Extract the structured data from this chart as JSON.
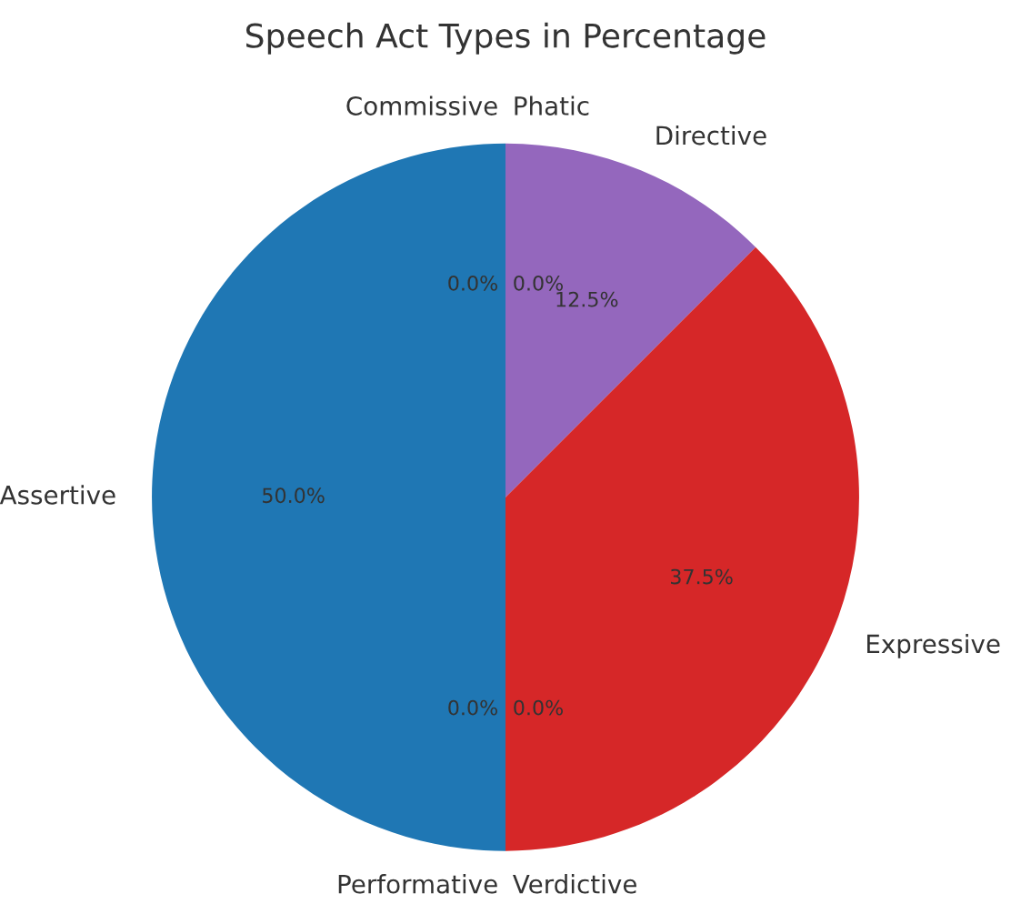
{
  "chart_data": {
    "type": "pie",
    "title": "Speech Act Types in Percentage",
    "categories": [
      "Assertive",
      "Performative",
      "Verdictive",
      "Expressive",
      "Directive",
      "Commissive",
      "Phatic"
    ],
    "values": [
      50.0,
      0.0,
      0.0,
      37.5,
      12.5,
      0.0,
      0.0
    ],
    "colors": [
      "#1f77b4",
      "#ff7f0e",
      "#2ca02c",
      "#d62728",
      "#9467bd",
      "#8c564b",
      "#e377c2"
    ],
    "value_labels": [
      "50.0%",
      "0.0%",
      "0.0%",
      "37.5%",
      "12.5%",
      "0.0%",
      "0.0%"
    ]
  }
}
